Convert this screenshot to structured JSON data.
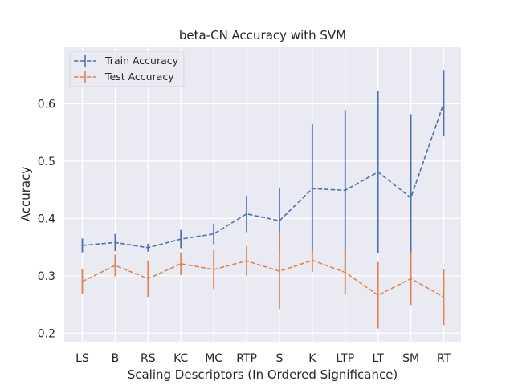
{
  "chart_data": {
    "type": "line",
    "title": "beta-CN Accuracy with SVM",
    "xlabel": "Scaling Descriptors (In Ordered Significance)",
    "ylabel": "Accuracy",
    "categories": [
      "LS",
      "B",
      "RS",
      "KC",
      "MC",
      "RTP",
      "S",
      "K",
      "LTP",
      "LT",
      "SM",
      "RT"
    ],
    "ylim": [
      0.185,
      0.7
    ],
    "yticks": [
      0.2,
      0.3,
      0.4,
      0.5,
      0.6
    ],
    "ytick_labels": [
      "0.2",
      "0.3",
      "0.4",
      "0.5",
      "0.6"
    ],
    "grid": true,
    "legend_position": "top-left",
    "series": [
      {
        "name": "Train Accuracy",
        "color": "#4c72b0",
        "values": [
          0.353,
          0.358,
          0.349,
          0.364,
          0.373,
          0.408,
          0.396,
          0.452,
          0.449,
          0.481,
          0.436,
          0.601
        ],
        "error": [
          0.012,
          0.015,
          0.007,
          0.016,
          0.018,
          0.032,
          0.058,
          0.114,
          0.14,
          0.142,
          0.146,
          0.058
        ]
      },
      {
        "name": "Test Accuracy",
        "color": "#dd8452",
        "values": [
          0.29,
          0.318,
          0.295,
          0.321,
          0.311,
          0.326,
          0.308,
          0.327,
          0.306,
          0.266,
          0.295,
          0.263
        ],
        "error": [
          0.021,
          0.019,
          0.032,
          0.02,
          0.034,
          0.026,
          0.066,
          0.02,
          0.039,
          0.058,
          0.046,
          0.049
        ]
      }
    ]
  }
}
